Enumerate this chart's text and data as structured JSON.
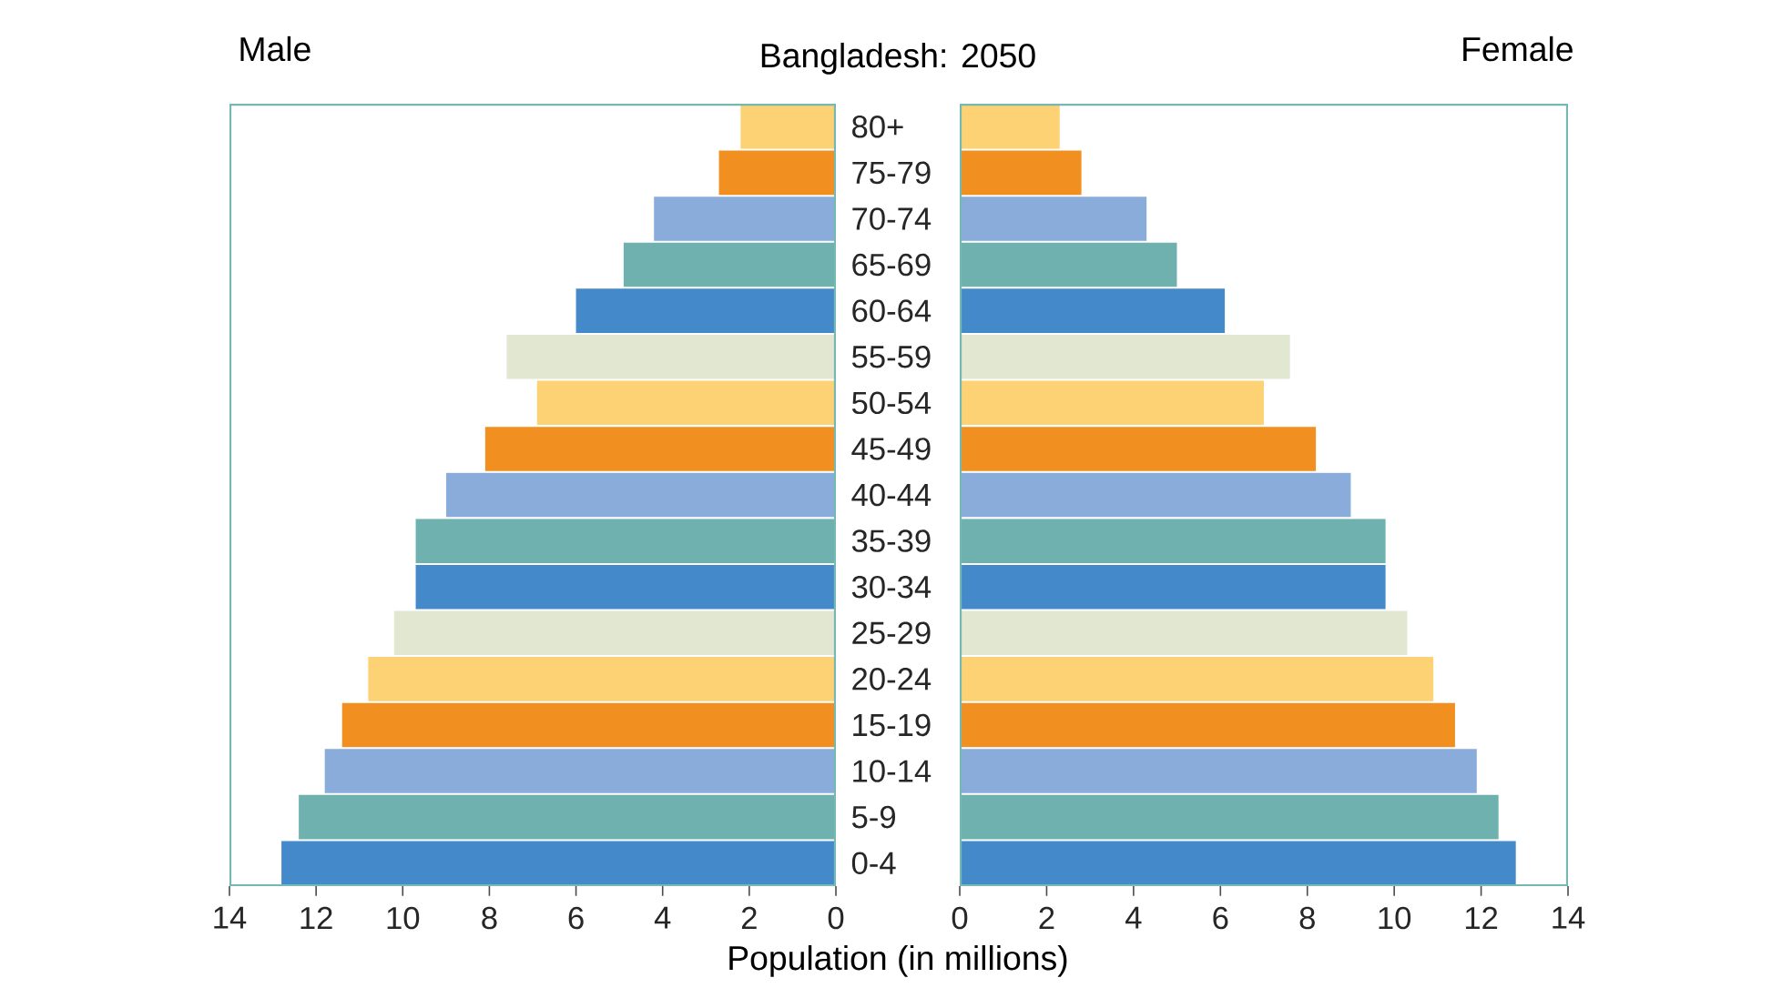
{
  "chart_data": [
    {
      "type": "bar",
      "orientation": "horizontal",
      "title": "Male",
      "subtitle": "Bangladesh: 2050",
      "xlabel": "Population (in millions)",
      "categories": [
        "80+",
        "75-79",
        "70-74",
        "65-69",
        "60-64",
        "55-59",
        "50-54",
        "45-49",
        "40-44",
        "35-39",
        "30-34",
        "25-29",
        "20-24",
        "15-19",
        "10-14",
        "5-9",
        "0-4"
      ],
      "values": [
        2.2,
        2.7,
        4.2,
        4.9,
        6.0,
        7.6,
        6.9,
        8.1,
        9.0,
        9.7,
        9.7,
        10.2,
        10.8,
        11.4,
        11.8,
        12.4,
        12.8
      ],
      "colors": [
        "#fdd275",
        "#f18f20",
        "#89acda",
        "#6fb1ae",
        "#4489ca",
        "#e2e7d1",
        "#fdd275",
        "#f18f20",
        "#89acda",
        "#6fb1ae",
        "#4489ca",
        "#e2e7d1",
        "#fdd275",
        "#f18f20",
        "#89acda",
        "#6fb1ae",
        "#4489ca"
      ],
      "xlim": [
        14,
        0
      ],
      "xticks": [
        14,
        12,
        10,
        8,
        6,
        4,
        2,
        0
      ],
      "grid": false
    },
    {
      "type": "bar",
      "orientation": "horizontal",
      "title": "Female",
      "categories": [
        null,
        null,
        null,
        null,
        null,
        null,
        null,
        null,
        null,
        null,
        null,
        null,
        null,
        null,
        null,
        null,
        null
      ],
      "values": [
        2.3,
        2.8,
        4.3,
        5.0,
        6.1,
        7.6,
        7.0,
        8.2,
        9.0,
        9.8,
        9.8,
        10.3,
        10.9,
        11.4,
        11.9,
        12.4,
        12.8
      ],
      "colors": [
        "#fdd275",
        "#f18f20",
        "#89acda",
        "#6fb1ae",
        "#4489ca",
        "#e2e7d1",
        "#fdd275",
        "#f18f20",
        "#89acda",
        "#6fb1ae",
        "#4489ca",
        "#e2e7d1",
        "#fdd275",
        "#f18f20",
        "#89acda",
        "#6fb1ae",
        "#4489ca"
      ],
      "xlim": [
        0,
        14
      ],
      "xticks": [
        0,
        2,
        4,
        6,
        8,
        10,
        12,
        14
      ],
      "grid": false
    }
  ]
}
